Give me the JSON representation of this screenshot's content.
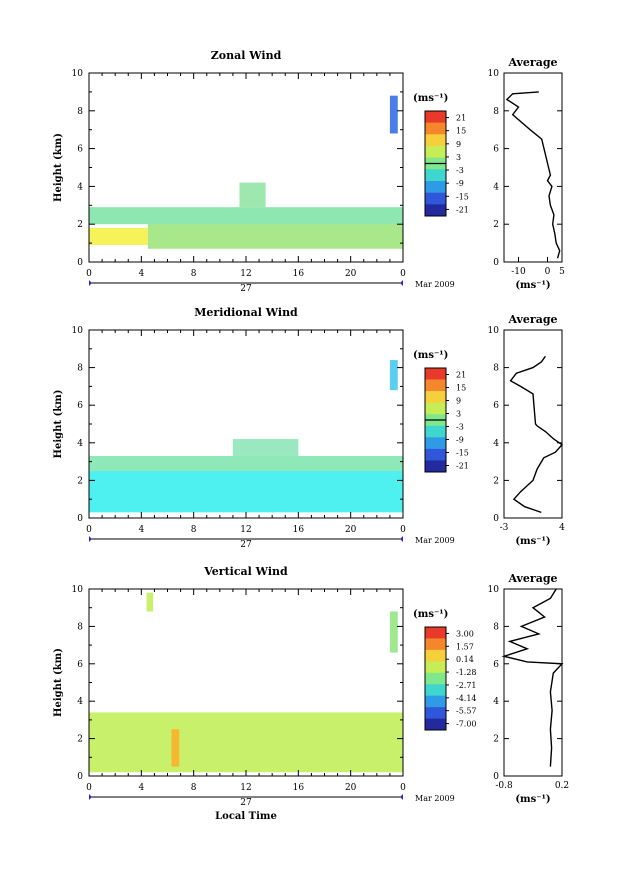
{
  "chart_data": [
    {
      "type": "heatmap",
      "title": "Zonal Wind",
      "ylabel": "Height (km)",
      "ylim": [
        0,
        10
      ],
      "yticks": [
        "0",
        "2",
        "4",
        "6",
        "8",
        "10"
      ],
      "xlim": [
        0,
        24
      ],
      "xticks": [
        "0",
        "4",
        "8",
        "12",
        "16",
        "20",
        "0"
      ],
      "date_label": "27",
      "month_label": "Mar 2009",
      "colorbar": {
        "unit": "(ms⁻¹)",
        "labels": [
          "21",
          "15",
          "9",
          "3",
          "-3",
          "-9",
          "-15",
          "-21"
        ],
        "zero_line": true
      },
      "regions": [
        {
          "x": [
            0,
            4.5
          ],
          "y": [
            0.9,
            1.8
          ],
          "value": 9,
          "color": "#f5f25a"
        },
        {
          "x": [
            4.5,
            24
          ],
          "y": [
            0.7,
            2.5
          ],
          "value": 4,
          "color": "#a8e88a"
        },
        {
          "x": [
            0,
            24
          ],
          "y": [
            2.0,
            2.9
          ],
          "value": 2,
          "color": "#8ee6b0"
        },
        {
          "x": [
            11.5,
            13.5
          ],
          "y": [
            2.9,
            4.2
          ],
          "value": 2,
          "color": "#9ee8b0"
        },
        {
          "x": [
            23.0,
            23.6
          ],
          "y": [
            6.8,
            8.8
          ],
          "value": -14,
          "color": "#4a7de8"
        }
      ],
      "average_profile": {
        "title": "Average",
        "xlim": [
          -15,
          5
        ],
        "xticks": [
          "-10",
          "0",
          "5"
        ],
        "xlabel": "(ms⁻¹)",
        "ylim": [
          0,
          10
        ],
        "yticks": [
          "0",
          "2",
          "4",
          "6",
          "8",
          "10"
        ],
        "points": [
          [
            3.5,
            0.2
          ],
          [
            4.2,
            0.6
          ],
          [
            3.0,
            1.0
          ],
          [
            2.5,
            1.5
          ],
          [
            1.8,
            2.0
          ],
          [
            2.2,
            2.5
          ],
          [
            1.0,
            3.0
          ],
          [
            0.5,
            3.5
          ],
          [
            1.5,
            4.0
          ],
          [
            0.0,
            4.3
          ],
          [
            1.0,
            4.6
          ],
          [
            -2.0,
            6.5
          ],
          [
            -6.0,
            7.0
          ],
          [
            -12.0,
            7.8
          ],
          [
            -10.0,
            8.2
          ],
          [
            -14.0,
            8.6
          ],
          [
            -12.0,
            8.9
          ],
          [
            -3.0,
            9.0
          ]
        ]
      }
    },
    {
      "type": "heatmap",
      "title": "Meridional Wind",
      "ylabel": "Height (km)",
      "ylim": [
        0,
        10
      ],
      "yticks": [
        "0",
        "2",
        "4",
        "6",
        "8",
        "10"
      ],
      "xlim": [
        0,
        24
      ],
      "xticks": [
        "0",
        "4",
        "8",
        "12",
        "16",
        "20",
        "0"
      ],
      "date_label": "27",
      "month_label": "Mar 2009",
      "colorbar": {
        "unit": "(ms⁻¹)",
        "labels": [
          "21",
          "15",
          "9",
          "3",
          "-3",
          "-9",
          "-15",
          "-21"
        ],
        "zero_line": true
      },
      "regions": [
        {
          "x": [
            0,
            24
          ],
          "y": [
            0.3,
            2.5
          ],
          "value": -4,
          "color": "#4ff0f0"
        },
        {
          "x": [
            0,
            24
          ],
          "y": [
            2.5,
            3.3
          ],
          "value": 1,
          "color": "#8ee8b8"
        },
        {
          "x": [
            11,
            16
          ],
          "y": [
            3.3,
            4.2
          ],
          "value": 1,
          "color": "#9ae8c0"
        },
        {
          "x": [
            23.0,
            23.6
          ],
          "y": [
            6.8,
            8.4
          ],
          "value": -2,
          "color": "#5ccff0"
        }
      ],
      "average_profile": {
        "title": "Average",
        "xlim": [
          -3,
          4
        ],
        "xticks": [
          "-3",
          "4"
        ],
        "xlabel": "(ms⁻¹)",
        "ylim": [
          0,
          10
        ],
        "yticks": [
          "0",
          "2",
          "4",
          "6",
          "8",
          "10"
        ],
        "points": [
          [
            1.5,
            0.3
          ],
          [
            -0.5,
            0.6
          ],
          [
            -1.8,
            1.0
          ],
          [
            -1.0,
            1.4
          ],
          [
            0.5,
            2.0
          ],
          [
            1.0,
            2.6
          ],
          [
            1.8,
            3.2
          ],
          [
            3.2,
            3.5
          ],
          [
            4.0,
            3.9
          ],
          [
            3.0,
            4.2
          ],
          [
            2.0,
            4.6
          ],
          [
            1.0,
            4.9
          ],
          [
            0.8,
            5.0
          ],
          [
            0.5,
            6.6
          ],
          [
            -1.0,
            7.0
          ],
          [
            -2.2,
            7.3
          ],
          [
            -1.5,
            7.7
          ],
          [
            0.5,
            8.0
          ],
          [
            1.5,
            8.3
          ],
          [
            2.0,
            8.6
          ]
        ]
      }
    },
    {
      "type": "heatmap",
      "title": "Vertical Wind",
      "ylabel": "Height (km)",
      "xlabel": "Local Time",
      "ylim": [
        0,
        10
      ],
      "yticks": [
        "0",
        "2",
        "4",
        "6",
        "8",
        "10"
      ],
      "xlim": [
        0,
        24
      ],
      "xticks": [
        "0",
        "4",
        "8",
        "12",
        "16",
        "20",
        "0"
      ],
      "date_label": "27",
      "month_label": "Mar 2009",
      "colorbar": {
        "unit": "(ms⁻¹)",
        "labels": [
          "3.00",
          "1.57",
          "0.14",
          "-1.28",
          "-2.71",
          "-4.14",
          "-5.57",
          "-7.00"
        ],
        "zero_line": false
      },
      "regions": [
        {
          "x": [
            0,
            24
          ],
          "y": [
            0.2,
            3.4
          ],
          "value": 0.4,
          "color": "#c9f06a"
        },
        {
          "x": [
            6.3,
            6.9
          ],
          "y": [
            0.5,
            2.5
          ],
          "value": 2.3,
          "color": "#f5b830"
        },
        {
          "x": [
            4.4,
            4.9
          ],
          "y": [
            8.8,
            9.8
          ],
          "value": 0.4,
          "color": "#c9f06a"
        },
        {
          "x": [
            23.0,
            23.6
          ],
          "y": [
            6.6,
            8.8
          ],
          "value": -0.5,
          "color": "#9ee890"
        }
      ],
      "average_profile": {
        "title": "Average",
        "xlim": [
          -0.8,
          0.2
        ],
        "xticks": [
          "-0.8",
          "0.2"
        ],
        "xlabel": "(ms⁻¹)",
        "ylim": [
          0,
          10
        ],
        "yticks": [
          "0",
          "2",
          "4",
          "6",
          "8",
          "10"
        ],
        "points": [
          [
            0.0,
            0.5
          ],
          [
            0.02,
            1.5
          ],
          [
            0.0,
            2.5
          ],
          [
            0.03,
            3.5
          ],
          [
            0.0,
            4.5
          ],
          [
            0.05,
            5.5
          ],
          [
            0.2,
            6.0
          ],
          [
            -0.4,
            6.1
          ],
          [
            -0.8,
            6.4
          ],
          [
            -0.4,
            6.8
          ],
          [
            -0.7,
            7.2
          ],
          [
            -0.2,
            7.6
          ],
          [
            -0.5,
            8.0
          ],
          [
            -0.1,
            8.5
          ],
          [
            -0.3,
            9.0
          ],
          [
            0.0,
            9.5
          ],
          [
            0.1,
            10.0
          ]
        ]
      }
    }
  ],
  "colorbar_colors": [
    "#e83a2a",
    "#f4872c",
    "#f6cf3c",
    "#c6ec56",
    "#7fe88a",
    "#3ed6cf",
    "#2f9be6",
    "#3057d9",
    "#232a9e"
  ]
}
